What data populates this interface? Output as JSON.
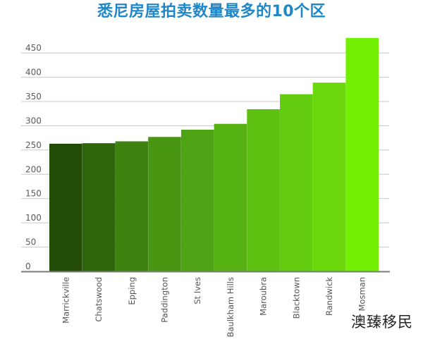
{
  "chart_data": {
    "type": "bar",
    "title": "悉尼房屋拍卖数量最多的10个区",
    "xlabel": "",
    "ylabel": "",
    "ylim": [
      0,
      480
    ],
    "yticks": [
      0,
      50,
      100,
      150,
      200,
      250,
      300,
      350,
      400,
      450
    ],
    "grid": true,
    "categories": [
      "Marrickville",
      "Chatswood",
      "Epping",
      "Paddington",
      "St Ives",
      "Baulkham Hills",
      "Maroubra",
      "Blacktown",
      "Randwick",
      "Mosman"
    ],
    "values": [
      263,
      264,
      268,
      277,
      292,
      304,
      334,
      365,
      389,
      481
    ],
    "colors": [
      "#234d07",
      "#2f650a",
      "#3e820f",
      "#479511",
      "#4ea315",
      "#56b213",
      "#5ec111",
      "#64cc0e",
      "#6bd80c",
      "#73ef05"
    ]
  },
  "watermark": "澳臻移民"
}
